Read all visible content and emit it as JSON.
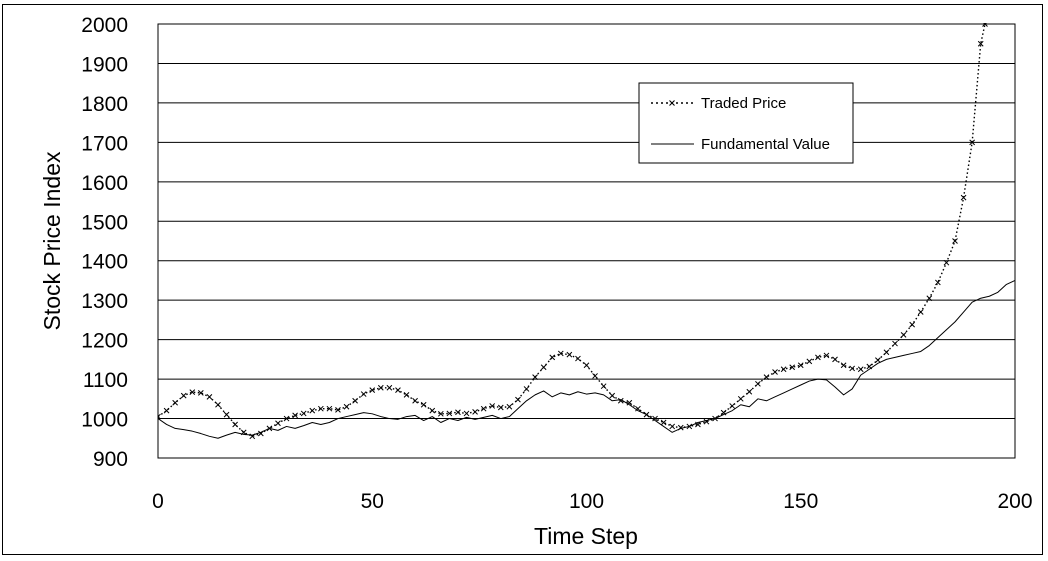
{
  "chart_data": {
    "type": "line",
    "title": "",
    "xlabel": "Time Step",
    "ylabel": "Stock Price Index",
    "xlim": [
      0,
      200
    ],
    "ylim": [
      900,
      2000
    ],
    "x_ticks": [
      0,
      50,
      100,
      150,
      200
    ],
    "y_ticks": [
      900,
      1000,
      1100,
      1200,
      1300,
      1400,
      1500,
      1600,
      1700,
      1800,
      1900,
      2000
    ],
    "grid": "horizontal",
    "legend_position": "top-right",
    "series": [
      {
        "name": "Traded Price",
        "style": "dotted-with-x-markers",
        "color": "#000000",
        "points": [
          [
            0,
            1005
          ],
          [
            2,
            1020
          ],
          [
            4,
            1040
          ],
          [
            6,
            1058
          ],
          [
            8,
            1067
          ],
          [
            10,
            1065
          ],
          [
            12,
            1055
          ],
          [
            14,
            1035
          ],
          [
            16,
            1010
          ],
          [
            18,
            985
          ],
          [
            20,
            965
          ],
          [
            22,
            955
          ],
          [
            24,
            962
          ],
          [
            26,
            975
          ],
          [
            28,
            988
          ],
          [
            30,
            1000
          ],
          [
            32,
            1008
          ],
          [
            34,
            1013
          ],
          [
            36,
            1020
          ],
          [
            38,
            1025
          ],
          [
            40,
            1025
          ],
          [
            42,
            1022
          ],
          [
            44,
            1030
          ],
          [
            46,
            1045
          ],
          [
            48,
            1062
          ],
          [
            50,
            1072
          ],
          [
            52,
            1078
          ],
          [
            54,
            1078
          ],
          [
            56,
            1072
          ],
          [
            58,
            1060
          ],
          [
            60,
            1045
          ],
          [
            62,
            1035
          ],
          [
            64,
            1020
          ],
          [
            66,
            1012
          ],
          [
            68,
            1013
          ],
          [
            70,
            1016
          ],
          [
            72,
            1013
          ],
          [
            74,
            1017
          ],
          [
            76,
            1025
          ],
          [
            78,
            1032
          ],
          [
            80,
            1028
          ],
          [
            82,
            1030
          ],
          [
            84,
            1048
          ],
          [
            86,
            1075
          ],
          [
            88,
            1105
          ],
          [
            90,
            1130
          ],
          [
            92,
            1155
          ],
          [
            94,
            1165
          ],
          [
            96,
            1162
          ],
          [
            98,
            1152
          ],
          [
            100,
            1135
          ],
          [
            102,
            1108
          ],
          [
            104,
            1082
          ],
          [
            106,
            1058
          ],
          [
            108,
            1045
          ],
          [
            110,
            1040
          ],
          [
            112,
            1025
          ],
          [
            114,
            1010
          ],
          [
            116,
            1000
          ],
          [
            118,
            990
          ],
          [
            120,
            980
          ],
          [
            122,
            977
          ],
          [
            124,
            980
          ],
          [
            126,
            985
          ],
          [
            128,
            992
          ],
          [
            130,
            1000
          ],
          [
            132,
            1015
          ],
          [
            134,
            1032
          ],
          [
            136,
            1050
          ],
          [
            138,
            1068
          ],
          [
            140,
            1088
          ],
          [
            142,
            1105
          ],
          [
            144,
            1118
          ],
          [
            146,
            1125
          ],
          [
            148,
            1130
          ],
          [
            150,
            1135
          ],
          [
            152,
            1145
          ],
          [
            154,
            1155
          ],
          [
            156,
            1160
          ],
          [
            158,
            1150
          ],
          [
            160,
            1135
          ],
          [
            162,
            1127
          ],
          [
            164,
            1125
          ],
          [
            166,
            1132
          ],
          [
            168,
            1148
          ],
          [
            170,
            1168
          ],
          [
            172,
            1190
          ],
          [
            174,
            1212
          ],
          [
            176,
            1238
          ],
          [
            178,
            1270
          ],
          [
            180,
            1305
          ],
          [
            182,
            1345
          ],
          [
            184,
            1395
          ],
          [
            186,
            1450
          ],
          [
            188,
            1560
          ],
          [
            190,
            1700
          ],
          [
            192,
            1950
          ],
          [
            193,
            2000
          ]
        ]
      },
      {
        "name": "Fundamental Value",
        "style": "solid",
        "color": "#000000",
        "points": [
          [
            0,
            1000
          ],
          [
            2,
            985
          ],
          [
            4,
            975
          ],
          [
            6,
            972
          ],
          [
            8,
            968
          ],
          [
            10,
            962
          ],
          [
            12,
            955
          ],
          [
            14,
            950
          ],
          [
            16,
            958
          ],
          [
            18,
            965
          ],
          [
            20,
            960
          ],
          [
            22,
            958
          ],
          [
            24,
            965
          ],
          [
            26,
            975
          ],
          [
            28,
            970
          ],
          [
            30,
            980
          ],
          [
            32,
            975
          ],
          [
            34,
            982
          ],
          [
            36,
            990
          ],
          [
            38,
            985
          ],
          [
            40,
            990
          ],
          [
            42,
            1000
          ],
          [
            44,
            1005
          ],
          [
            46,
            1010
          ],
          [
            48,
            1015
          ],
          [
            50,
            1012
          ],
          [
            52,
            1005
          ],
          [
            54,
            1000
          ],
          [
            56,
            998
          ],
          [
            58,
            1005
          ],
          [
            60,
            1008
          ],
          [
            62,
            995
          ],
          [
            64,
            1005
          ],
          [
            66,
            990
          ],
          [
            68,
            1000
          ],
          [
            70,
            995
          ],
          [
            72,
            1003
          ],
          [
            74,
            998
          ],
          [
            76,
            1003
          ],
          [
            78,
            1008
          ],
          [
            80,
            1000
          ],
          [
            82,
            1005
          ],
          [
            84,
            1025
          ],
          [
            86,
            1045
          ],
          [
            88,
            1060
          ],
          [
            90,
            1070
          ],
          [
            92,
            1055
          ],
          [
            94,
            1065
          ],
          [
            96,
            1060
          ],
          [
            98,
            1068
          ],
          [
            100,
            1062
          ],
          [
            102,
            1065
          ],
          [
            104,
            1060
          ],
          [
            106,
            1045
          ],
          [
            108,
            1048
          ],
          [
            110,
            1035
          ],
          [
            112,
            1020
          ],
          [
            114,
            1010
          ],
          [
            116,
            995
          ],
          [
            118,
            980
          ],
          [
            120,
            965
          ],
          [
            122,
            975
          ],
          [
            124,
            980
          ],
          [
            126,
            990
          ],
          [
            128,
            995
          ],
          [
            130,
            1000
          ],
          [
            132,
            1010
          ],
          [
            134,
            1020
          ],
          [
            136,
            1035
          ],
          [
            138,
            1030
          ],
          [
            140,
            1050
          ],
          [
            142,
            1045
          ],
          [
            144,
            1055
          ],
          [
            146,
            1065
          ],
          [
            148,
            1075
          ],
          [
            150,
            1085
          ],
          [
            152,
            1095
          ],
          [
            154,
            1100
          ],
          [
            156,
            1098
          ],
          [
            158,
            1080
          ],
          [
            160,
            1060
          ],
          [
            162,
            1075
          ],
          [
            164,
            1110
          ],
          [
            166,
            1125
          ],
          [
            168,
            1140
          ],
          [
            170,
            1150
          ],
          [
            172,
            1155
          ],
          [
            174,
            1160
          ],
          [
            176,
            1165
          ],
          [
            178,
            1170
          ],
          [
            180,
            1185
          ],
          [
            182,
            1205
          ],
          [
            184,
            1225
          ],
          [
            186,
            1245
          ],
          [
            188,
            1270
          ],
          [
            190,
            1295
          ],
          [
            192,
            1305
          ],
          [
            194,
            1310
          ],
          [
            196,
            1320
          ],
          [
            198,
            1340
          ],
          [
            200,
            1350
          ]
        ]
      }
    ]
  }
}
